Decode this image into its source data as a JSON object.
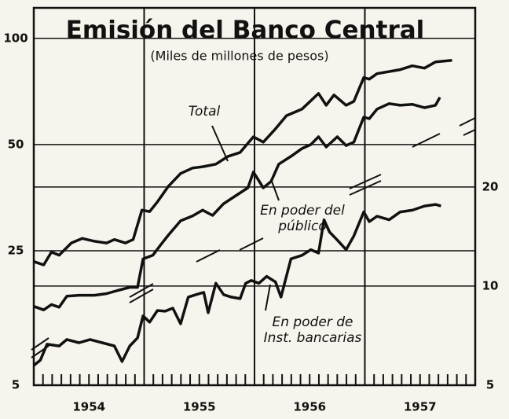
{
  "chart_data": {
    "type": "line",
    "title": "Emisión del Banco Central",
    "subtitle": "(Miles de millones de pesos)",
    "log_scale": true,
    "xlim": [
      1954,
      1958
    ],
    "xgrid": [
      1955,
      1956,
      1957
    ],
    "xticks": [
      {
        "value": 1954.5,
        "label": "1954"
      },
      {
        "value": 1955.5,
        "label": "1955"
      },
      {
        "value": 1956.5,
        "label": "1956"
      },
      {
        "value": 1957.5,
        "label": "1957"
      }
    ],
    "ylim": [
      10.4,
      122
    ],
    "yticks": [
      25,
      50,
      100
    ],
    "y2lim": [
      5,
      70
    ],
    "y2ticks": [
      5,
      10,
      20
    ],
    "series": [
      {
        "name": "Total",
        "color": "#111111",
        "x": [
          1954.0,
          1954.09,
          1954.16,
          1954.23,
          1954.34,
          1954.44,
          1954.55,
          1954.66,
          1954.73,
          1954.83,
          1954.9,
          1954.98,
          1955.05,
          1955.12,
          1955.22,
          1955.33,
          1955.44,
          1955.54,
          1955.65,
          1955.76,
          1955.87,
          1955.99,
          1956.08,
          1956.19,
          1956.29,
          1956.43,
          1956.58,
          1956.65,
          1956.72,
          1956.83,
          1956.9,
          1956.99,
          1957.04,
          1957.11,
          1957.32,
          1957.43,
          1957.54,
          1957.64,
          1957.79
        ],
        "values": [
          23.3,
          22.8,
          24.8,
          24.3,
          26.3,
          27.1,
          26.6,
          26.3,
          26.9,
          26.3,
          26.9,
          32.6,
          32.3,
          34.4,
          38.1,
          41.4,
          42.9,
          43.3,
          44.0,
          46.3,
          47.5,
          52.6,
          50.8,
          55.4,
          60.4,
          63.0,
          69.8,
          64.6,
          69.1,
          64.6,
          66.3,
          77.4,
          76.6,
          79.4,
          81.5,
          83.6,
          82.3,
          85.7,
          86.6
        ]
      },
      {
        "name": "En poder del público",
        "color": "#111111",
        "x": [
          1954.0,
          1954.09,
          1954.16,
          1954.23,
          1954.3,
          1954.41,
          1954.55,
          1954.66,
          1954.76,
          1954.87,
          1954.94,
          1954.99,
          1955.08,
          1955.15,
          1955.22,
          1955.33,
          1955.44,
          1955.53,
          1955.62,
          1955.72,
          1955.83,
          1955.94,
          1955.99,
          1956.08,
          1956.15,
          1956.22,
          1956.33,
          1956.43,
          1956.51,
          1956.58,
          1956.65,
          1956.75,
          1956.83,
          1956.9,
          1956.99,
          1957.04,
          1957.11,
          1957.22,
          1957.32,
          1957.43,
          1957.54,
          1957.64,
          1957.68
        ],
        "values": [
          17.4,
          17.0,
          17.6,
          17.3,
          18.6,
          18.7,
          18.7,
          18.9,
          19.3,
          19.7,
          19.7,
          23.7,
          24.3,
          26.0,
          27.7,
          30.4,
          31.4,
          32.6,
          31.5,
          34.0,
          35.8,
          37.7,
          41.8,
          37.7,
          39.3,
          44.0,
          46.3,
          48.7,
          50.0,
          52.6,
          49.2,
          52.6,
          49.7,
          50.8,
          59.8,
          59.2,
          63.0,
          65.3,
          64.6,
          65.0,
          63.6,
          64.6,
          68.0
        ]
      },
      {
        "name": "En poder de Inst. bancarias",
        "color": "#111111",
        "axis": "y2",
        "x": [
          1954.0,
          1954.06,
          1954.12,
          1954.23,
          1954.3,
          1954.41,
          1954.51,
          1954.62,
          1954.73,
          1954.8,
          1954.87,
          1954.94,
          1954.99,
          1955.05,
          1955.12,
          1955.19,
          1955.26,
          1955.33,
          1955.4,
          1955.47,
          1955.54,
          1955.58,
          1955.65,
          1955.72,
          1955.79,
          1955.87,
          1955.92,
          1955.97,
          1956.04,
          1956.11,
          1956.19,
          1956.24,
          1956.33,
          1956.43,
          1956.51,
          1956.58,
          1956.63,
          1956.68,
          1956.75,
          1956.83,
          1956.9,
          1956.99,
          1957.04,
          1957.11,
          1957.22,
          1957.32,
          1957.43,
          1957.54,
          1957.64,
          1957.69
        ],
        "values": [
          5.74,
          5.96,
          6.66,
          6.58,
          6.88,
          6.73,
          6.88,
          6.73,
          6.58,
          5.9,
          6.58,
          6.96,
          8.12,
          7.77,
          8.43,
          8.39,
          8.57,
          7.68,
          9.26,
          9.42,
          9.57,
          8.3,
          10.2,
          9.42,
          9.26,
          9.16,
          10.2,
          10.4,
          10.2,
          10.7,
          10.3,
          9.26,
          12.1,
          12.4,
          12.9,
          12.6,
          15.9,
          14.6,
          13.8,
          12.9,
          14.2,
          16.8,
          15.7,
          16.3,
          15.9,
          16.8,
          17.0,
          17.5,
          17.7,
          17.5
        ]
      }
    ],
    "annotations": [
      {
        "lines": [
          "Total"
        ]
      },
      {
        "lines": [
          "En poder del",
          "público"
        ]
      },
      {
        "lines": [
          "En poder de",
          "Inst. bancarias"
        ]
      }
    ]
  }
}
